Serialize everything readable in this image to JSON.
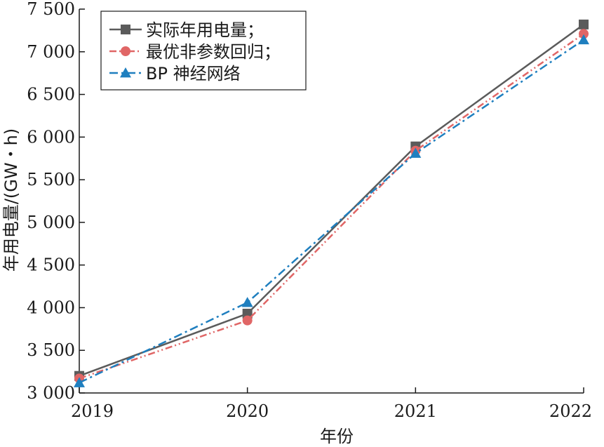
{
  "chart_data": {
    "type": "line",
    "xlabel": "年份",
    "ylabel": "年用电量/(GW・h)",
    "x": [
      "2019",
      "2020",
      "2021",
      "2022"
    ],
    "ylim": [
      3000,
      7500
    ],
    "yticks": [
      3000,
      3500,
      4000,
      4500,
      5000,
      5500,
      6000,
      6500,
      7000,
      7500
    ],
    "ytick_labels": [
      "3 000",
      "3 500",
      "4 000",
      "4 500",
      "5 000",
      "5 500",
      "6 000",
      "6 500",
      "7 000",
      "7 500"
    ],
    "grid": false,
    "legend_position": "top-left",
    "series": [
      {
        "name": "实际年用电量；",
        "values": [
          3200,
          3930,
          5890,
          7320
        ],
        "color": "#5b5b5b",
        "marker": "square",
        "line_style": "solid"
      },
      {
        "name": "最优非参数回归；",
        "values": [
          3170,
          3850,
          5840,
          7210
        ],
        "color": "#e06666",
        "marker": "circle",
        "line_style": "dash-dot-dot"
      },
      {
        "name": "BP 神经网络",
        "values": [
          3120,
          4060,
          5810,
          7140
        ],
        "color": "#1f7fbf",
        "marker": "triangle",
        "line_style": "dash-dot"
      }
    ]
  }
}
